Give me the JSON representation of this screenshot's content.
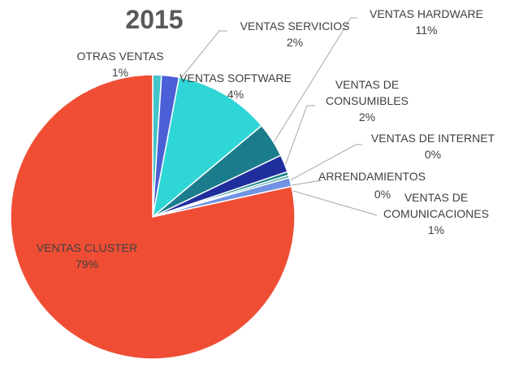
{
  "chart_data": {
    "type": "pie",
    "title": "2015",
    "categories": [
      "OTRAS VENTAS",
      "VENTAS SERVICIOS",
      "VENTAS HARDWARE",
      "VENTAS SOFTWARE",
      "VENTAS DE CONSUMIBLES",
      "VENTAS DE INTERNET",
      "ARRENDAMIENTOS",
      "VENTAS DE COMUNICACIONES",
      "VENTAS CLUSTER"
    ],
    "values": [
      1,
      2,
      11,
      4,
      2,
      0.4,
      0.3,
      1,
      79
    ],
    "value_labels": [
      "1%",
      "2%",
      "11%",
      "4%",
      "2%",
      "0%",
      "0%",
      "1%",
      "79%"
    ],
    "colors": [
      "#43c4c9",
      "#4b5fd6",
      "#2ed6d6",
      "#1b7d8c",
      "#1f2e9c",
      "#167f86",
      "#4fa6a6",
      "#6f93e2",
      "#ef4e35"
    ]
  }
}
